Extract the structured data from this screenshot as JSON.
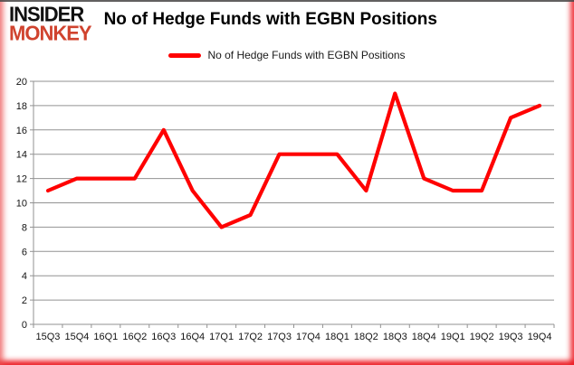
{
  "logo": {
    "line1": "INSIDER",
    "line2": "MONKEY",
    "line2_color": "#d0432e"
  },
  "header": {
    "title": "No of Hedge Funds with EGBN Positions"
  },
  "legend": {
    "label": "No of Hedge Funds with EGBN Positions",
    "swatch_color": "#ff0000"
  },
  "chart_data": {
    "type": "line",
    "title": "No of Hedge Funds with EGBN Positions",
    "categories": [
      "15Q3",
      "15Q4",
      "16Q1",
      "16Q2",
      "16Q3",
      "16Q4",
      "17Q1",
      "17Q2",
      "17Q3",
      "17Q4",
      "18Q1",
      "18Q2",
      "18Q3",
      "18Q4",
      "19Q1",
      "19Q2",
      "19Q3",
      "19Q4"
    ],
    "values": [
      11,
      12,
      12,
      12,
      16,
      11,
      8,
      9,
      14,
      14,
      14,
      11,
      19,
      12,
      11,
      11,
      17,
      18
    ],
    "xlabel": "",
    "ylabel": "",
    "ylim": [
      0,
      20
    ],
    "ytick_step": 2,
    "grid": true,
    "legend_position": "top-center",
    "line_color": "#ff0000",
    "gridline_color": "#929292",
    "axis_color": "#929292"
  }
}
